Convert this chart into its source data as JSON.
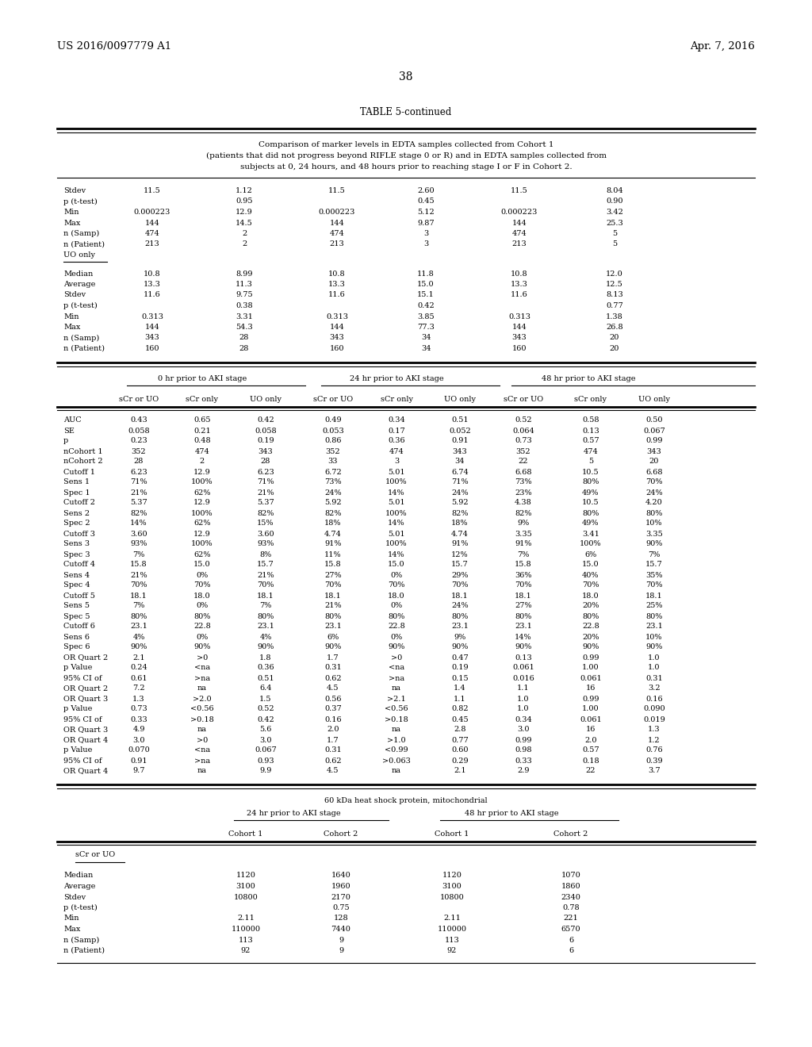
{
  "header_left": "US 2016/0097779 A1",
  "header_right": "Apr. 7, 2016",
  "page_number": "38",
  "table_title": "TABLE 5-continued",
  "table_caption_lines": [
    "Comparison of marker levels in EDTA samples collected from Cohort 1",
    "(patients that did not progress beyond RIFLE stage 0 or R) and in EDTA samples collected from",
    "subjects at 0, 24 hours, and 48 hours prior to reaching stage I or F in Cohort 2."
  ],
  "top_section": [
    [
      "Stdev",
      "11.5",
      "1.12",
      "11.5",
      "2.60",
      "11.5",
      "8.04"
    ],
    [
      "p (t-test)",
      "",
      "0.95",
      "",
      "0.45",
      "",
      "0.90"
    ],
    [
      "Min",
      "0.000223",
      "12.9",
      "0.000223",
      "5.12",
      "0.000223",
      "3.42"
    ],
    [
      "Max",
      "144",
      "14.5",
      "144",
      "9.87",
      "144",
      "25.3"
    ],
    [
      "n (Samp)",
      "474",
      "2",
      "474",
      "3",
      "474",
      "5"
    ],
    [
      "n (Patient)",
      "213",
      "2",
      "213",
      "3",
      "213",
      "5"
    ],
    [
      "UO only",
      "",
      "",
      "",
      "",
      "",
      ""
    ]
  ],
  "uo_section": [
    [
      "Median",
      "10.8",
      "8.99",
      "10.8",
      "11.8",
      "10.8",
      "12.0"
    ],
    [
      "Average",
      "13.3",
      "11.3",
      "13.3",
      "15.0",
      "13.3",
      "12.5"
    ],
    [
      "Stdev",
      "11.6",
      "9.75",
      "11.6",
      "15.1",
      "11.6",
      "8.13"
    ],
    [
      "p (t-test)",
      "",
      "0.38",
      "",
      "0.42",
      "",
      "0.77"
    ],
    [
      "Min",
      "0.313",
      "3.31",
      "0.313",
      "3.85",
      "0.313",
      "1.38"
    ],
    [
      "Max",
      "144",
      "54.3",
      "144",
      "77.3",
      "144",
      "26.8"
    ],
    [
      "n (Samp)",
      "343",
      "28",
      "343",
      "34",
      "343",
      "20"
    ],
    [
      "n (Patient)",
      "160",
      "28",
      "160",
      "34",
      "160",
      "20"
    ]
  ],
  "aki_data": [
    [
      "AUC",
      "0.43",
      "0.65",
      "0.42",
      "0.49",
      "0.34",
      "0.51",
      "0.52",
      "0.58",
      "0.50"
    ],
    [
      "SE",
      "0.058",
      "0.21",
      "0.058",
      "0.053",
      "0.17",
      "0.052",
      "0.064",
      "0.13",
      "0.067"
    ],
    [
      "p",
      "0.23",
      "0.48",
      "0.19",
      "0.86",
      "0.36",
      "0.91",
      "0.73",
      "0.57",
      "0.99"
    ],
    [
      "nCohort 1",
      "352",
      "474",
      "343",
      "352",
      "474",
      "343",
      "352",
      "474",
      "343"
    ],
    [
      "nCohort 2",
      "28",
      "2",
      "28",
      "33",
      "3",
      "34",
      "22",
      "5",
      "20"
    ],
    [
      "Cutoff 1",
      "6.23",
      "12.9",
      "6.23",
      "6.72",
      "5.01",
      "6.74",
      "6.68",
      "10.5",
      "6.68"
    ],
    [
      "Sens 1",
      "71%",
      "100%",
      "71%",
      "73%",
      "100%",
      "71%",
      "73%",
      "80%",
      "70%"
    ],
    [
      "Spec 1",
      "21%",
      "62%",
      "21%",
      "24%",
      "14%",
      "24%",
      "23%",
      "49%",
      "24%"
    ],
    [
      "Cutoff 2",
      "5.37",
      "12.9",
      "5.37",
      "5.92",
      "5.01",
      "5.92",
      "4.38",
      "10.5",
      "4.20"
    ],
    [
      "Sens 2",
      "82%",
      "100%",
      "82%",
      "82%",
      "100%",
      "82%",
      "82%",
      "80%",
      "80%"
    ],
    [
      "Spec 2",
      "14%",
      "62%",
      "15%",
      "18%",
      "14%",
      "18%",
      "9%",
      "49%",
      "10%"
    ],
    [
      "Cutoff 3",
      "3.60",
      "12.9",
      "3.60",
      "4.74",
      "5.01",
      "4.74",
      "3.35",
      "3.41",
      "3.35"
    ],
    [
      "Sens 3",
      "93%",
      "100%",
      "93%",
      "91%",
      "100%",
      "91%",
      "91%",
      "100%",
      "90%"
    ],
    [
      "Spec 3",
      "7%",
      "62%",
      "8%",
      "11%",
      "14%",
      "12%",
      "7%",
      "6%",
      "7%"
    ],
    [
      "Cutoff 4",
      "15.8",
      "15.0",
      "15.7",
      "15.8",
      "15.0",
      "15.7",
      "15.8",
      "15.0",
      "15.7"
    ],
    [
      "Sens 4",
      "21%",
      "0%",
      "21%",
      "27%",
      "0%",
      "29%",
      "36%",
      "40%",
      "35%"
    ],
    [
      "Spec 4",
      "70%",
      "70%",
      "70%",
      "70%",
      "70%",
      "70%",
      "70%",
      "70%",
      "70%"
    ],
    [
      "Cutoff 5",
      "18.1",
      "18.0",
      "18.1",
      "18.1",
      "18.0",
      "18.1",
      "18.1",
      "18.0",
      "18.1"
    ],
    [
      "Sens 5",
      "7%",
      "0%",
      "7%",
      "21%",
      "0%",
      "24%",
      "27%",
      "20%",
      "25%"
    ],
    [
      "Spec 5",
      "80%",
      "80%",
      "80%",
      "80%",
      "80%",
      "80%",
      "80%",
      "80%",
      "80%"
    ],
    [
      "Cutoff 6",
      "23.1",
      "22.8",
      "23.1",
      "23.1",
      "22.8",
      "23.1",
      "23.1",
      "22.8",
      "23.1"
    ],
    [
      "Sens 6",
      "4%",
      "0%",
      "4%",
      "6%",
      "0%",
      "9%",
      "14%",
      "20%",
      "10%"
    ],
    [
      "Spec 6",
      "90%",
      "90%",
      "90%",
      "90%",
      "90%",
      "90%",
      "90%",
      "90%",
      "90%"
    ],
    [
      "OR Quart 2",
      "2.1",
      ">0",
      "1.8",
      "1.7",
      ">0",
      "0.47",
      "0.13",
      "0.99",
      "1.0"
    ],
    [
      "p Value",
      "0.24",
      "<na",
      "0.36",
      "0.31",
      "<na",
      "0.19",
      "0.061",
      "1.00",
      "1.0"
    ],
    [
      "95% CI of",
      "0.61",
      ">na",
      "0.51",
      "0.62",
      ">na",
      "0.15",
      "0.016",
      "0.061",
      "0.31"
    ],
    [
      "OR Quart 2",
      "7.2",
      "na",
      "6.4",
      "4.5",
      "na",
      "1.4",
      "1.1",
      "16",
      "3.2"
    ],
    [
      "OR Quart 3",
      "1.3",
      ">2.0",
      "1.5",
      "0.56",
      ">2.1",
      "1.1",
      "1.0",
      "0.99",
      "0.16"
    ],
    [
      "p Value",
      "0.73",
      "<0.56",
      "0.52",
      "0.37",
      "<0.56",
      "0.82",
      "1.0",
      "1.00",
      "0.090"
    ],
    [
      "95% CI of",
      "0.33",
      ">0.18",
      "0.42",
      "0.16",
      ">0.18",
      "0.45",
      "0.34",
      "0.061",
      "0.019"
    ],
    [
      "OR Quart 3",
      "4.9",
      "na",
      "5.6",
      "2.0",
      "na",
      "2.8",
      "3.0",
      "16",
      "1.3"
    ],
    [
      "OR Quart 4",
      "3.0",
      ">0",
      "3.0",
      "1.7",
      ">1.0",
      "0.77",
      "0.99",
      "2.0",
      "1.2"
    ],
    [
      "p Value",
      "0.070",
      "<na",
      "0.067",
      "0.31",
      "<0.99",
      "0.60",
      "0.98",
      "0.57",
      "0.76"
    ],
    [
      "95% CI of",
      "0.91",
      ">na",
      "0.93",
      "0.62",
      ">0.063",
      "0.29",
      "0.33",
      "0.18",
      "0.39"
    ],
    [
      "OR Quart 4",
      "9.7",
      "na",
      "9.9",
      "4.5",
      "na",
      "2.1",
      "2.9",
      "22",
      "3.7"
    ]
  ],
  "bottom_section_title": "60 kDa heat shock protein, mitochondrial",
  "bottom_subsection": "sCr or UO",
  "bottom_data": [
    [
      "Median",
      "1120",
      "1640",
      "1120",
      "1070"
    ],
    [
      "Average",
      "3100",
      "1960",
      "3100",
      "1860"
    ],
    [
      "Stdev",
      "10800",
      "2170",
      "10800",
      "2340"
    ],
    [
      "p (t-test)",
      "",
      "0.75",
      "",
      "0.78"
    ],
    [
      "Min",
      "2.11",
      "128",
      "2.11",
      "221"
    ],
    [
      "Max",
      "110000",
      "7440",
      "110000",
      "6570"
    ],
    [
      "n (Samp)",
      "113",
      "9",
      "113",
      "6"
    ],
    [
      "n (Patient)",
      "92",
      "9",
      "92",
      "6"
    ]
  ]
}
